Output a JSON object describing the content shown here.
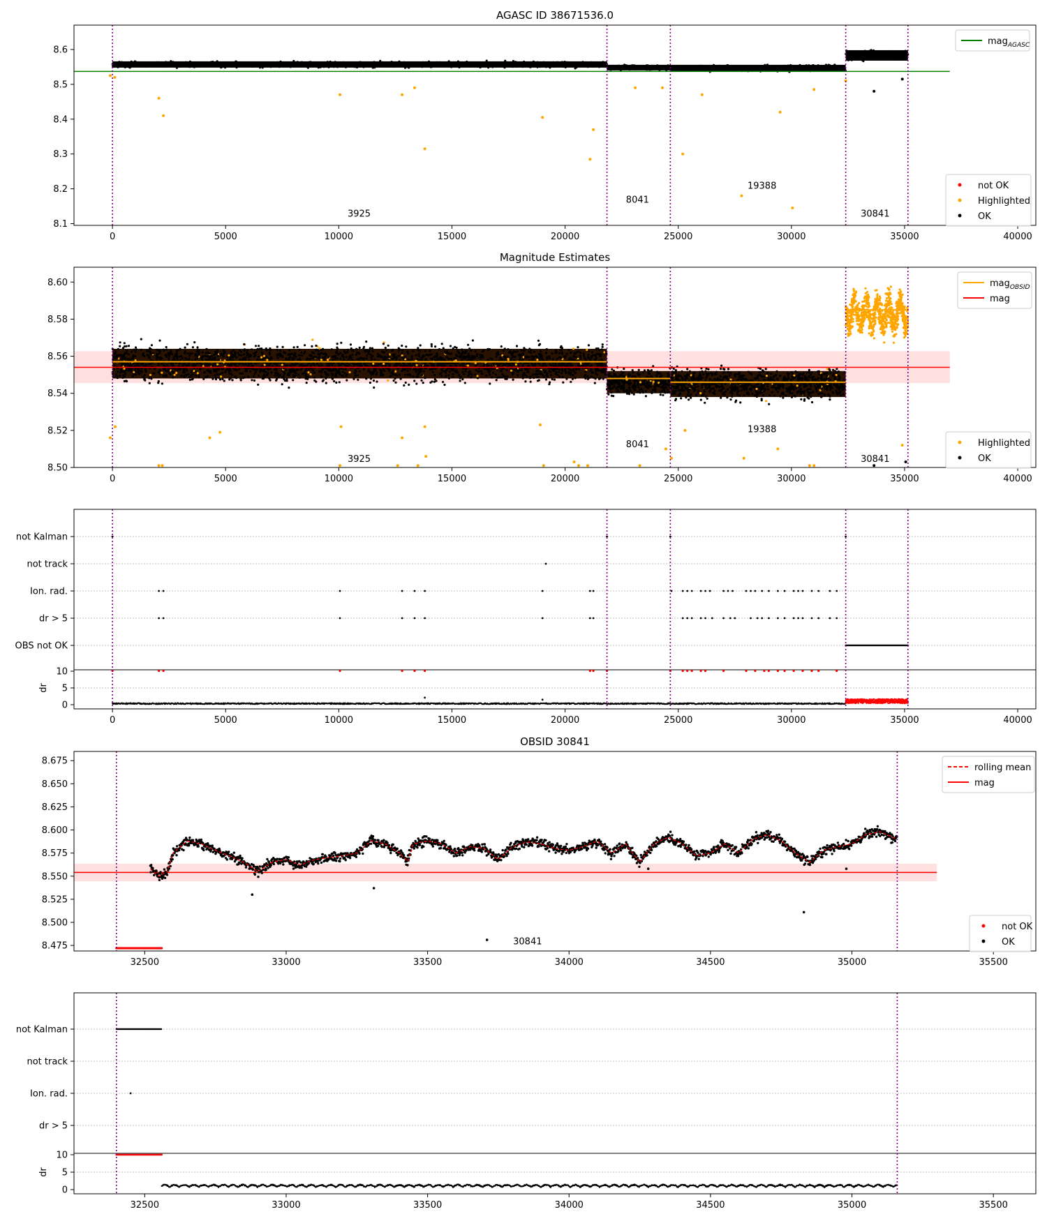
{
  "chart_data": [
    {
      "type": "scatter",
      "title": "AGASC ID 38671536.0",
      "xlim": [
        -1700,
        40800
      ],
      "ylim": [
        8.095,
        8.67
      ],
      "x_ticks": [
        0,
        5000,
        10000,
        15000,
        20000,
        25000,
        30000,
        35000,
        40000
      ],
      "y_ticks": [
        8.1,
        8.2,
        8.3,
        8.4,
        8.5,
        8.6
      ],
      "obs_boundaries": [
        0,
        21850,
        24650,
        32400,
        35150
      ],
      "obsid_labels": [
        {
          "text": "3925",
          "x": 10900,
          "y": 8.12
        },
        {
          "text": "8041",
          "x": 23200,
          "y": 8.16
        },
        {
          "text": "19388",
          "x": 28700,
          "y": 8.2
        },
        {
          "text": "30841",
          "x": 33700,
          "y": 8.12
        }
      ],
      "mag_agasc": 8.537,
      "mag_agasc_x_range": [
        -1700,
        37000
      ],
      "series": [
        {
          "name": "not OK",
          "color": "#ff0000",
          "values": []
        },
        {
          "name": "Highlighted",
          "color": "#ffa500",
          "values": [
            [
              -100,
              8.525
            ],
            [
              100,
              8.52
            ],
            [
              2050,
              8.46
            ],
            [
              2250,
              8.41
            ],
            [
              10050,
              8.47
            ],
            [
              12800,
              8.47
            ],
            [
              13350,
              8.49
            ],
            [
              13800,
              8.315
            ],
            [
              19000,
              8.405
            ],
            [
              21100,
              8.285
            ],
            [
              21250,
              8.37
            ],
            [
              23100,
              8.49
            ],
            [
              24300,
              8.49
            ],
            [
              25200,
              8.3
            ],
            [
              26050,
              8.47
            ],
            [
              27800,
              8.18
            ],
            [
              29500,
              8.42
            ],
            [
              30050,
              8.145
            ],
            [
              31000,
              8.485
            ],
            [
              32400,
              8.51
            ]
          ]
        },
        {
          "name": "OK",
          "color": "#000000",
          "values": [
            [
              33650,
              8.48
            ],
            [
              34900,
              8.515
            ]
          ]
        }
      ],
      "bands": [
        {
          "x": [
            0,
            21850
          ],
          "center": 8.557,
          "half": 0.009,
          "color": "#000000"
        },
        {
          "x": [
            21850,
            24650
          ],
          "center": 8.548,
          "half": 0.008,
          "color": "#000000"
        },
        {
          "x": [
            24650,
            32400
          ],
          "center": 8.547,
          "half": 0.009,
          "color": "#000000"
        },
        {
          "x": [
            32400,
            35150
          ],
          "center": 8.583,
          "half": 0.015,
          "color": "#000000"
        }
      ],
      "legend_top": [
        {
          "label": "mag",
          "sub": "AGASC",
          "color": "#008000",
          "kind": "line"
        }
      ],
      "legend_bottom": [
        {
          "label": "not OK",
          "color": "#ff0000",
          "kind": "dot"
        },
        {
          "label": "Highlighted",
          "color": "#ffa500",
          "kind": "dot"
        },
        {
          "label": "OK",
          "color": "#000000",
          "kind": "dot"
        }
      ]
    },
    {
      "type": "scatter",
      "title": "Magnitude Estimates",
      "xlim": [
        -1700,
        40800
      ],
      "ylim": [
        8.5,
        8.608
      ],
      "x_ticks": [
        0,
        5000,
        10000,
        15000,
        20000,
        25000,
        30000,
        35000,
        40000
      ],
      "y_ticks": [
        8.5,
        8.52,
        8.54,
        8.56,
        8.58,
        8.6
      ],
      "y_tick_labels": [
        "8.50",
        "8.52",
        "8.54",
        "8.56",
        "8.58",
        "8.60"
      ],
      "obs_boundaries": [
        0,
        21850,
        24650,
        32400,
        35150
      ],
      "obsid_labels": [
        {
          "text": "3925",
          "x": 10900,
          "y": 8.503
        },
        {
          "text": "8041",
          "x": 23200,
          "y": 8.511
        },
        {
          "text": "19388",
          "x": 28700,
          "y": 8.519
        },
        {
          "text": "30841",
          "x": 33700,
          "y": 8.503
        }
      ],
      "mag": 8.554,
      "mag_band": [
        8.5455,
        8.5627
      ],
      "mag_x_range": [
        -1700,
        37000
      ],
      "mag_obsid": [
        {
          "x": [
            0,
            21850
          ],
          "y": 8.557
        },
        {
          "x": [
            21850,
            24650
          ],
          "y": 8.548
        },
        {
          "x": [
            24650,
            32400
          ],
          "y": 8.546
        },
        {
          "x": [
            32400,
            35150
          ],
          "y": 8.585
        }
      ],
      "bands": [
        {
          "x": [
            0,
            21850
          ],
          "center": 8.556,
          "half": 0.008,
          "spread": 0.013
        },
        {
          "x": [
            21850,
            24650
          ],
          "center": 8.546,
          "half": 0.006,
          "spread": 0.009
        },
        {
          "x": [
            24650,
            32400
          ],
          "center": 8.545,
          "half": 0.007,
          "spread": 0.011
        },
        {
          "x": [
            32400,
            35150
          ],
          "center": 8.583,
          "half": 0.012,
          "spread": 0.014
        }
      ],
      "series": [
        {
          "name": "Highlighted",
          "color": "#ffa500",
          "values": [
            [
              -100,
              8.516
            ],
            [
              120,
              8.522
            ],
            [
              2050,
              8.501
            ],
            [
              2200,
              8.501
            ],
            [
              4300,
              8.516
            ],
            [
              4750,
              8.519
            ],
            [
              10100,
              8.522
            ],
            [
              10050,
              8.501
            ],
            [
              12600,
              8.501
            ],
            [
              12800,
              8.516
            ],
            [
              13500,
              8.501
            ],
            [
              13800,
              8.522
            ],
            [
              13850,
              8.506
            ],
            [
              18900,
              8.523
            ],
            [
              19050,
              8.501
            ],
            [
              20400,
              8.503
            ],
            [
              20600,
              8.501
            ],
            [
              21000,
              8.501
            ],
            [
              23300,
              8.501
            ],
            [
              24450,
              8.51
            ],
            [
              24700,
              8.505
            ],
            [
              25300,
              8.52
            ],
            [
              27900,
              8.505
            ],
            [
              29400,
              8.51
            ],
            [
              30800,
              8.501
            ],
            [
              31000,
              8.501
            ],
            [
              34900,
              8.512
            ]
          ]
        },
        {
          "name": "OK",
          "color": "#000000",
          "values": [
            [
              33650,
              8.501
            ],
            [
              35050,
              8.503
            ]
          ]
        }
      ],
      "legend_top": [
        {
          "label": "mag",
          "sub": "OBSID",
          "color": "#ffa500",
          "kind": "line"
        },
        {
          "label": "mag",
          "sub": "",
          "color": "#ff0000",
          "kind": "line"
        }
      ],
      "legend_bottom": [
        {
          "label": "Highlighted",
          "color": "#ffa500",
          "kind": "dot"
        },
        {
          "label": "OK",
          "color": "#000000",
          "kind": "dot"
        }
      ]
    },
    {
      "type": "scatter",
      "title": "",
      "xlim": [
        -1700,
        40800
      ],
      "x_ticks": [
        0,
        5000,
        10000,
        15000,
        20000,
        25000,
        30000,
        35000,
        40000
      ],
      "flag_labels": [
        "not Kalman",
        "not track",
        "Ion. rad.",
        "dr > 5",
        "OBS not OK"
      ],
      "dr_ylabel": "dr",
      "dr_ticks": [
        0,
        5,
        10
      ],
      "obs_boundaries": [
        0,
        21850,
        24650,
        32400,
        35150
      ],
      "flags": {
        "not Kalman": [
          0,
          21850,
          24650,
          32400
        ],
        "not track": [
          19150
        ],
        "Ion. rad.": [
          2050,
          2250,
          10050,
          12800,
          13350,
          13800,
          19000,
          21100,
          21250,
          24700,
          25200,
          25400,
          25600,
          26000,
          26200,
          26400,
          27000,
          27200,
          27400,
          28000,
          28200,
          28400,
          28700,
          29000,
          29400,
          29700,
          30100,
          30300,
          30500,
          30900,
          31200,
          31700,
          32000
        ],
        "dr > 5": [
          2050,
          2250,
          10050,
          12800,
          13350,
          13800,
          19000,
          21100,
          21250,
          25200,
          25400,
          25600,
          26000,
          26200,
          26500,
          27000,
          27300,
          27500,
          28200,
          28500,
          28700,
          29000,
          29400,
          29700,
          30100,
          30300,
          30500,
          30900,
          31200,
          31700,
          32000
        ],
        "OBS not OK": [
          [
            32400,
            35150
          ]
        ]
      },
      "dr_high_points": [
        0,
        2050,
        2250,
        10050,
        12800,
        13350,
        13800,
        21100,
        21250,
        21850,
        24650,
        25200,
        25400,
        25600,
        26000,
        26200,
        27000,
        28000,
        28400,
        28800,
        29000,
        29400,
        29700,
        30100,
        30500,
        30900,
        31200,
        32000
      ],
      "dr_mid_points": [
        [
          13800,
          2.1
        ],
        [
          19000,
          1.5
        ]
      ],
      "dr_red_range": [
        32400,
        35150
      ]
    },
    {
      "type": "scatter",
      "title": "OBSID 30841",
      "xlim": [
        32250,
        35650
      ],
      "ylim": [
        8.469,
        8.685
      ],
      "x_ticks": [
        32500,
        33000,
        33500,
        34000,
        34500,
        35000,
        35500
      ],
      "y_ticks": [
        8.475,
        8.5,
        8.525,
        8.55,
        8.575,
        8.6,
        8.625,
        8.65,
        8.675
      ],
      "y_tick_labels": [
        "8.475",
        "8.500",
        "8.525",
        "8.550",
        "8.575",
        "8.600",
        "8.625",
        "8.650",
        "8.675"
      ],
      "obs_boundaries": [
        32400,
        35160
      ],
      "obsid_labels": [
        {
          "text": "30841",
          "x": 33790,
          "y": 8.48
        }
      ],
      "mag": 8.554,
      "mag_band": [
        8.5445,
        8.5635
      ],
      "mag_x_range": [
        32250,
        35300
      ],
      "rolling_mean": [
        [
          32520,
          8.558
        ],
        [
          32550,
          8.55
        ],
        [
          32580,
          8.555
        ],
        [
          32600,
          8.575
        ],
        [
          32650,
          8.588
        ],
        [
          32700,
          8.585
        ],
        [
          32750,
          8.578
        ],
        [
          32800,
          8.572
        ],
        [
          32850,
          8.565
        ],
        [
          32900,
          8.555
        ],
        [
          32950,
          8.565
        ],
        [
          33000,
          8.568
        ],
        [
          33050,
          8.562
        ],
        [
          33100,
          8.568
        ],
        [
          33200,
          8.572
        ],
        [
          33250,
          8.575
        ],
        [
          33300,
          8.588
        ],
        [
          33350,
          8.585
        ],
        [
          33400,
          8.575
        ],
        [
          33430,
          8.566
        ],
        [
          33450,
          8.585
        ],
        [
          33500,
          8.588
        ],
        [
          33550,
          8.585
        ],
        [
          33600,
          8.575
        ],
        [
          33650,
          8.582
        ],
        [
          33700,
          8.58
        ],
        [
          33750,
          8.568
        ],
        [
          33800,
          8.582
        ],
        [
          33850,
          8.587
        ],
        [
          33900,
          8.585
        ],
        [
          33950,
          8.58
        ],
        [
          34000,
          8.578
        ],
        [
          34050,
          8.582
        ],
        [
          34100,
          8.588
        ],
        [
          34150,
          8.575
        ],
        [
          34200,
          8.585
        ],
        [
          34250,
          8.565
        ],
        [
          34300,
          8.585
        ],
        [
          34350,
          8.592
        ],
        [
          34400,
          8.585
        ],
        [
          34450,
          8.572
        ],
        [
          34500,
          8.575
        ],
        [
          34550,
          8.585
        ],
        [
          34600,
          8.575
        ],
        [
          34650,
          8.59
        ],
        [
          34700,
          8.595
        ],
        [
          34750,
          8.588
        ],
        [
          34800,
          8.575
        ],
        [
          34850,
          8.565
        ],
        [
          34900,
          8.578
        ],
        [
          34950,
          8.582
        ],
        [
          35000,
          8.585
        ],
        [
          35050,
          8.595
        ],
        [
          35100,
          8.598
        ],
        [
          35160,
          8.59
        ]
      ],
      "outliers": [
        [
          32880,
          8.53
        ],
        [
          33310,
          8.537
        ],
        [
          34280,
          8.558
        ],
        [
          34830,
          8.511
        ],
        [
          34980,
          8.558
        ],
        [
          33710,
          8.481
        ]
      ],
      "not_ok_range": [
        32400,
        32560
      ],
      "not_ok_y": 8.472,
      "legend_top": [
        {
          "label": "rolling mean",
          "color": "#ff0000",
          "kind": "dashed"
        },
        {
          "label": "mag",
          "color": "#ff0000",
          "kind": "line"
        }
      ],
      "legend_bottom": [
        {
          "label": "not OK",
          "color": "#ff0000",
          "kind": "dot"
        },
        {
          "label": "OK",
          "color": "#000000",
          "kind": "dot"
        }
      ]
    },
    {
      "type": "scatter",
      "title": "",
      "xlim": [
        32250,
        35650
      ],
      "x_ticks": [
        32500,
        33000,
        33500,
        34000,
        34500,
        35000,
        35500
      ],
      "flag_labels": [
        "not Kalman",
        "not track",
        "Ion. rad.",
        "dr > 5"
      ],
      "dr_ylabel": "dr",
      "dr_ticks": [
        0,
        5,
        10
      ],
      "obs_boundaries": [
        32400,
        35160
      ],
      "flags": {
        "not Kalman": [
          [
            32400,
            32560
          ]
        ],
        "Ion. rad.": [
          32450
        ]
      },
      "dr_red_range": [
        32400,
        32560
      ],
      "dr_black_range": [
        32560,
        35160
      ]
    }
  ]
}
